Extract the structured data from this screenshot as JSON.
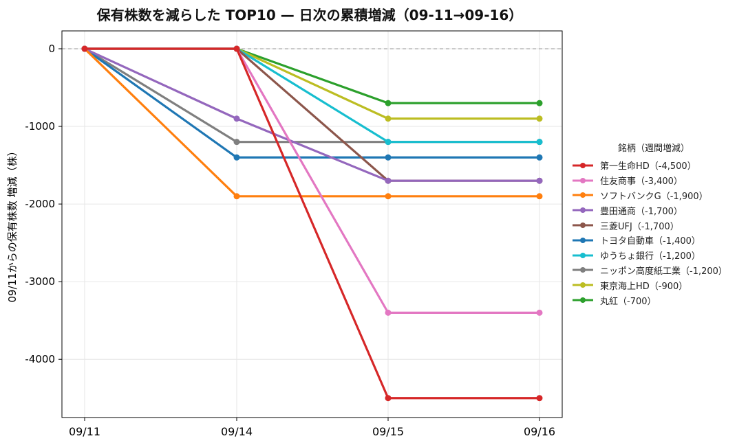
{
  "chart_data": {
    "type": "line",
    "title": "保有株数を減らした TOP10 — 日次の累積増減（09-11→09-16）",
    "xlabel": "",
    "ylabel": "09/11からの保有株数 増減（株）",
    "categories": [
      "09/11",
      "09/14",
      "09/15",
      "09/16"
    ],
    "ylim": [
      -4750,
      230
    ],
    "yticks": [
      0,
      -1000,
      -2000,
      -3000,
      -4000
    ],
    "ytick_labels": [
      "0",
      "-1000",
      "-2000",
      "-3000",
      "-4000"
    ],
    "grid": true,
    "zero_line": true,
    "legend_title": "銘柄（週間増減）",
    "legend_position": "right",
    "series": [
      {
        "name": "第一生命HD（-4,500）",
        "color": "#d62728",
        "values": [
          0,
          0,
          -4500,
          -4500
        ]
      },
      {
        "name": "住友商事（-3,400）",
        "color": "#e377c2",
        "values": [
          0,
          0,
          -3400,
          -3400
        ]
      },
      {
        "name": "ソフトバンクG（-1,900）",
        "color": "#ff7f0e",
        "values": [
          0,
          -1900,
          -1900,
          -1900
        ]
      },
      {
        "name": "豊田通商（-1,700）",
        "color": "#9467bd",
        "values": [
          0,
          -900,
          -1700,
          -1700
        ]
      },
      {
        "name": "三菱UFJ（-1,700）",
        "color": "#8c564b",
        "values": [
          0,
          0,
          -1700,
          -1700
        ]
      },
      {
        "name": "トヨタ自動車（-1,400）",
        "color": "#1f77b4",
        "values": [
          0,
          -1400,
          -1400,
          -1400
        ]
      },
      {
        "name": "ゆうちょ銀行（-1,200）",
        "color": "#17becf",
        "values": [
          0,
          0,
          -1200,
          -1200
        ]
      },
      {
        "name": "ニッポン高度紙工業（-1,200）",
        "color": "#7f7f7f",
        "values": [
          0,
          -1200,
          -1200,
          -1200
        ]
      },
      {
        "name": "東京海上HD（-900）",
        "color": "#bcbd22",
        "values": [
          0,
          0,
          -900,
          -900
        ]
      },
      {
        "name": "丸紅（-700）",
        "color": "#2ca02c",
        "values": [
          0,
          0,
          -700,
          -700
        ]
      }
    ]
  }
}
